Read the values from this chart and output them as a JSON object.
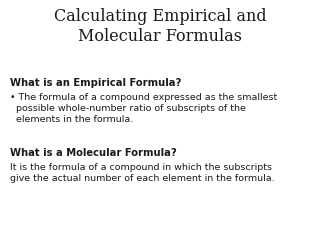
{
  "title_line1": "Calculating Empirical and",
  "title_line2": "Molecular Formulas",
  "title_fontsize": 11.5,
  "title_color": "#1a1a1a",
  "bg_color": "#ffffff",
  "section1_header": "What is an Empirical Formula?",
  "section1_bullet_line1": "• The formula of a compound expressed as the smallest",
  "section1_bullet_line2": "  possible whole-number ratio of subscripts of the",
  "section1_bullet_line3": "  elements in the formula.",
  "section2_header": "What is a Molecular Formula?",
  "section2_body_line1": "It is the formula of a compound in which the subscripts",
  "section2_body_line2": "give the actual number of each element in the formula.",
  "header_fontsize": 7.2,
  "body_fontsize": 6.8,
  "text_color": "#1a1a1a"
}
